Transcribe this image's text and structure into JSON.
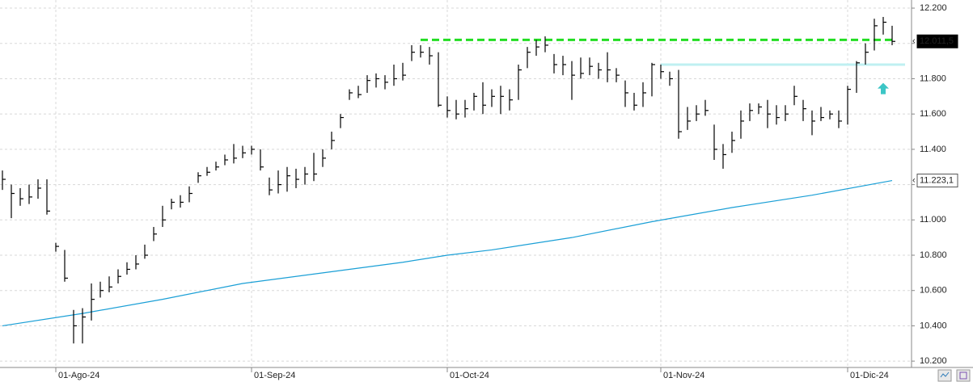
{
  "chart_data": {
    "type": "ohlc",
    "categories": [
      null,
      null,
      null,
      null,
      null,
      null,
      "01-Ago-24",
      null,
      null,
      null,
      null,
      null,
      null,
      null,
      null,
      null,
      null,
      null,
      null,
      null,
      null,
      null,
      null,
      null,
      null,
      null,
      null,
      null,
      "01-Sep-24",
      null,
      null,
      null,
      null,
      null,
      null,
      null,
      null,
      null,
      null,
      null,
      null,
      null,
      null,
      null,
      null,
      null,
      null,
      null,
      null,
      null,
      "01-Oct-24",
      null,
      null,
      null,
      null,
      null,
      null,
      null,
      null,
      null,
      null,
      null,
      null,
      null,
      null,
      null,
      null,
      null,
      null,
      null,
      null,
      null,
      null,
      null,
      "01-Nov-24",
      null,
      null,
      null,
      null,
      null,
      null,
      null,
      null,
      null,
      null,
      null,
      null,
      null,
      null,
      null,
      null,
      null,
      null,
      null,
      null,
      "01-Dic-24",
      null,
      null,
      null,
      null,
      null
    ],
    "high": [
      11280,
      11200,
      11180,
      11200,
      11230,
      11230,
      10870,
      10830,
      10490,
      10500,
      10640,
      10650,
      10680,
      10720,
      10760,
      10800,
      10860,
      10960,
      11080,
      11120,
      11140,
      11190,
      11270,
      11300,
      11330,
      11370,
      11430,
      11420,
      11420,
      11400,
      11240,
      11280,
      11300,
      11290,
      11300,
      11380,
      11400,
      11500,
      11600,
      11740,
      11760,
      11820,
      11830,
      11820,
      11880,
      11890,
      11990,
      11990,
      11980,
      11950,
      11700,
      11680,
      11680,
      11720,
      11780,
      11740,
      11760,
      11740,
      11880,
      11980,
      12020,
      12040,
      11940,
      11930,
      11900,
      11920,
      11920,
      11890,
      11950,
      11860,
      11790,
      11720,
      11780,
      11890,
      11880,
      11840,
      11850,
      11640,
      11650,
      11680,
      11540,
      11430,
      11500,
      11620,
      11660,
      11660,
      11680,
      11650,
      11650,
      11760,
      11680,
      11620,
      11640,
      11620,
      11620,
      11760,
      11900,
      12000,
      12140,
      12150,
      12100
    ],
    "low": [
      11170,
      11010,
      11080,
      11090,
      11120,
      11030,
      10820,
      10650,
      10300,
      10300,
      10430,
      10560,
      10590,
      10640,
      10690,
      10720,
      10780,
      10880,
      10960,
      11060,
      11070,
      11100,
      11210,
      11250,
      11280,
      11310,
      11320,
      11350,
      11370,
      11280,
      11140,
      11150,
      11160,
      11180,
      11200,
      11220,
      11300,
      11400,
      11520,
      11680,
      11690,
      11720,
      11750,
      11740,
      11760,
      11790,
      11900,
      11920,
      11880,
      11640,
      11580,
      11570,
      11580,
      11620,
      11600,
      11640,
      11600,
      11620,
      11680,
      11860,
      11930,
      11950,
      11830,
      11820,
      11680,
      11800,
      11820,
      11800,
      11780,
      11780,
      11640,
      11620,
      11640,
      11700,
      11800,
      11760,
      11460,
      11510,
      11560,
      11590,
      11340,
      11290,
      11380,
      11460,
      11560,
      11600,
      11520,
      11540,
      11560,
      11650,
      11560,
      11480,
      11560,
      11570,
      11520,
      11540,
      11720,
      11880,
      11960,
      12050,
      11990
    ],
    "close": [
      11230,
      11150,
      11120,
      11130,
      11180,
      11050,
      10850,
      10670,
      10400,
      10450,
      10550,
      10600,
      10620,
      10680,
      10720,
      10750,
      10800,
      10920,
      11000,
      11100,
      11100,
      11150,
      11250,
      11270,
      11300,
      11340,
      11350,
      11380,
      11400,
      11300,
      11170,
      11200,
      11250,
      11230,
      11260,
      11260,
      11350,
      11450,
      11580,
      11720,
      11710,
      11790,
      11800,
      11780,
      11800,
      11820,
      11950,
      11950,
      11930,
      11650,
      11620,
      11600,
      11630,
      11700,
      11650,
      11700,
      11700,
      11680,
      11850,
      11950,
      11980,
      11990,
      11880,
      11880,
      11820,
      11830,
      11870,
      11850,
      11850,
      11820,
      11720,
      11650,
      11720,
      11880,
      11840,
      11800,
      11500,
      11560,
      11600,
      11620,
      11400,
      11370,
      11450,
      11560,
      11620,
      11640,
      11600,
      11580,
      11600,
      11700,
      11630,
      11560,
      11580,
      11600,
      11560,
      11740,
      11890,
      11950,
      12100,
      12120,
      12011.5
    ],
    "bar_color": "#000000",
    "moving_average": {
      "color": "#1a9fd6",
      "x": [
        0,
        9,
        18,
        27,
        36,
        45,
        50,
        55,
        64,
        73,
        82,
        91,
        100
      ],
      "values": [
        10400,
        10470,
        10550,
        10640,
        10700,
        10760,
        10800,
        10830,
        10900,
        10990,
        11070,
        11140,
        11223.1
      ]
    },
    "reference_lines": [
      {
        "value": 12020,
        "from": 47,
        "to": 100,
        "color": "#22dd22",
        "dashed": true
      },
      {
        "value": 11880,
        "from": 74,
        "to": 101,
        "color": "#bff0f2",
        "dashed": false
      }
    ],
    "arrow": {
      "x": 99,
      "value": 11740,
      "color": "#3cc6c6"
    },
    "price_labels": [
      {
        "value": 12011.5,
        "label": "12.011,5",
        "style": "dark"
      },
      {
        "value": 11223.1,
        "label": "11.223,1",
        "style": "light"
      }
    ],
    "ylim": [
      10164,
      12246
    ],
    "yticks": [
      {
        "value": 10200,
        "label": "10.200"
      },
      {
        "value": 10400,
        "label": "10.400"
      },
      {
        "value": 10600,
        "label": "10.600"
      },
      {
        "value": 10800,
        "label": "10.800"
      },
      {
        "value": 11000,
        "label": "11.000"
      },
      {
        "value": 11200,
        "label": "11.200"
      },
      {
        "value": 11400,
        "label": "11.400"
      },
      {
        "value": 11600,
        "label": "11.600"
      },
      {
        "value": 11800,
        "label": "11.800"
      },
      {
        "value": 12000,
        "label": "12.000"
      },
      {
        "value": 12200,
        "label": "12.200"
      }
    ],
    "grid": true
  }
}
